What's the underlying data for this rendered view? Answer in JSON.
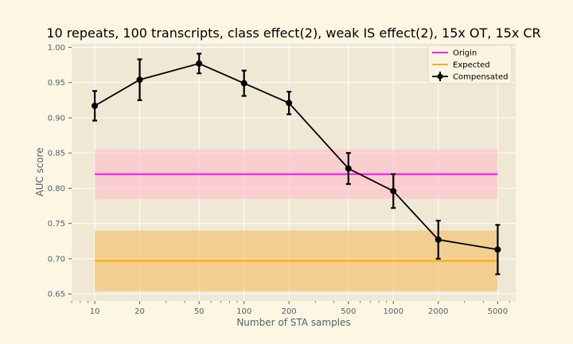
{
  "chart_data": {
    "type": "line",
    "title": "10 repeats, 100 transcripts, class effect(2), weak IS effect(2), 15x OT, 15x CR",
    "xlabel": "Number of STA samples",
    "ylabel": "AUC score",
    "xscale": "log",
    "xlim": [
      7,
      6600
    ],
    "ylim": [
      0.64,
      1.005
    ],
    "x_ticks": [
      10,
      20,
      50,
      100,
      200,
      500,
      1000,
      2000,
      5000
    ],
    "x_tick_labels": [
      "10",
      "20",
      "50",
      "100",
      "200",
      "500",
      "1000",
      "2000",
      "5000"
    ],
    "y_ticks": [
      0.65,
      0.7,
      0.75,
      0.8,
      0.85,
      0.9,
      0.95,
      1.0
    ],
    "y_tick_labels": [
      "0.65",
      "0.70",
      "0.75",
      "0.80",
      "0.85",
      "0.90",
      "0.95",
      "1.00"
    ],
    "grid": true,
    "legend_position": "top-right",
    "series": [
      {
        "name": "Origin",
        "kind": "hline",
        "color": "#ff00ff",
        "x_range": [
          10,
          5000
        ],
        "value": 0.82,
        "band": [
          0.785,
          0.855
        ],
        "band_color": "#ffc0cb"
      },
      {
        "name": "Expected",
        "kind": "hline",
        "color": "#ffa500",
        "x_range": [
          10,
          5000
        ],
        "value": 0.697,
        "band": [
          0.654,
          0.74
        ],
        "band_color": "#f5c26b"
      },
      {
        "name": "Compensated",
        "kind": "errorbar",
        "color": "#000000",
        "x": [
          10,
          20,
          50,
          100,
          200,
          500,
          1000,
          2000,
          5000
        ],
        "y": [
          0.917,
          0.954,
          0.977,
          0.949,
          0.921,
          0.828,
          0.796,
          0.727,
          0.713
        ],
        "yerr": [
          0.021,
          0.029,
          0.014,
          0.018,
          0.016,
          0.022,
          0.024,
          0.027,
          0.035
        ]
      }
    ]
  },
  "colors": {
    "page_background": "#fdf6e3",
    "plot_background": "#eee8d5",
    "grid": "#ffffff",
    "tick_text": "#555f6a"
  }
}
